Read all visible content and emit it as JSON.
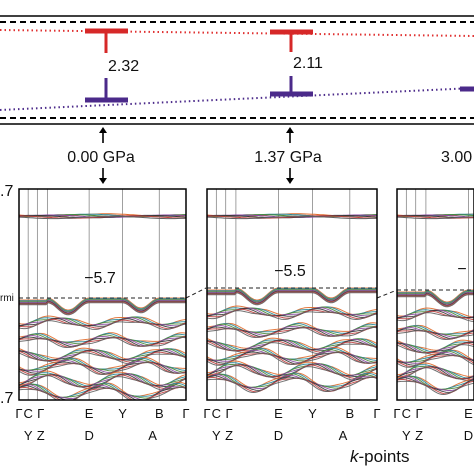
{
  "chart_data": [
    {
      "type": "line",
      "panel": "top-gap-evolution",
      "series": [
        {
          "color": "#e03030",
          "style": "dotted",
          "role": "upper-edge"
        },
        {
          "color": "#4b2a8a",
          "style": "dotted",
          "role": "lower-edge"
        }
      ],
      "gaps": [
        {
          "pressure": "0.00 GPa",
          "value": "2.32"
        },
        {
          "pressure": "1.37 GPa",
          "value": "2.11"
        },
        {
          "pressure": "3.00",
          "value": ""
        }
      ]
    },
    {
      "type": "line",
      "panel": "band-structures",
      "xlabel_prefix": "k",
      "xlabel_suffix": "-points",
      "ylabel_top": ".7",
      "ylabel_bottom": ".7",
      "fermi_label": "rmi",
      "panels": [
        {
          "pressure": "0.00 GPa",
          "annotation": "−5.7"
        },
        {
          "pressure": "1.37 GPa",
          "annotation": "−5.5"
        },
        {
          "pressure": "3.00",
          "annotation": "−"
        }
      ],
      "kpath_top": [
        "Γ",
        "C",
        "Γ",
        "E",
        "Y",
        "B",
        "Γ"
      ],
      "kpath_bottom": [
        "Y",
        "Z",
        "D",
        "A"
      ],
      "band_colors": [
        "#e06a2a",
        "#2a8a9a",
        "#4a8a3a",
        "#8a4aa0",
        "#3a3a3a",
        "#c04040",
        "#606060"
      ]
    }
  ]
}
